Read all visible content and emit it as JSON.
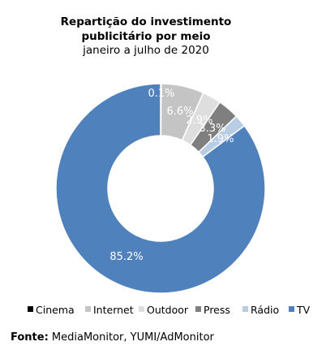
{
  "chart_data": {
    "type": "pie",
    "title_lines": [
      "Repartição do investimento",
      "publicitário por meio"
    ],
    "subtitle": "janeiro a julho de 2020",
    "categories": [
      "Cinema",
      "Internet",
      "Outdoor",
      "Press",
      "Rádio",
      "TV"
    ],
    "values": [
      0.1,
      6.6,
      2.9,
      3.3,
      1.9,
      85.2
    ],
    "value_labels": [
      "0.1%",
      "6.6%",
      "2.9%",
      "3.3%",
      "1.9%",
      "85.2%"
    ],
    "colors": [
      "#000000",
      "#c4c4c4",
      "#dedede",
      "#7f7f7f",
      "#b8cce4",
      "#4f81bd"
    ],
    "hole": "donut",
    "legend_position": "bottom"
  },
  "source": {
    "label": "Fonte:",
    "text": "MediaMonitor, YUMI/AdMonitor"
  }
}
